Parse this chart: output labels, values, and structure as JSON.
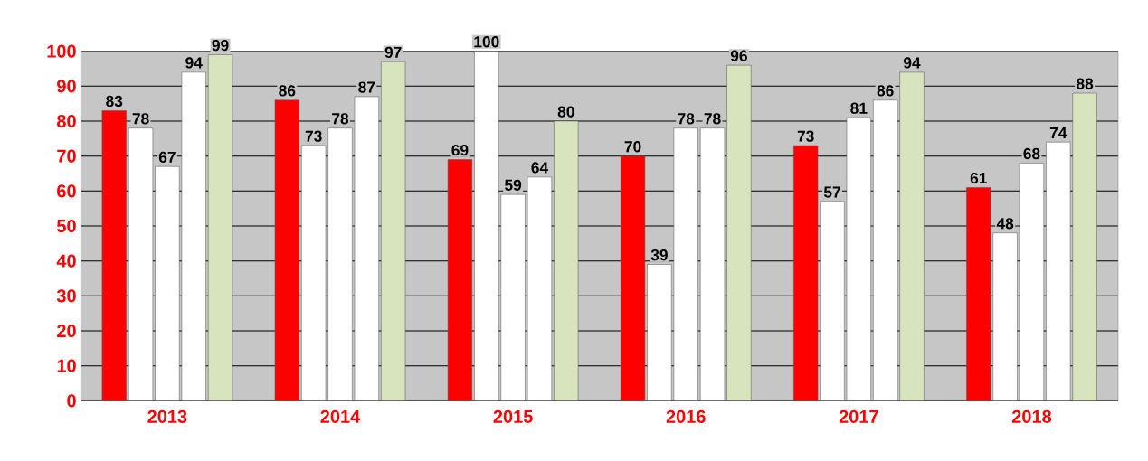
{
  "chart_data": {
    "type": "bar",
    "categories": [
      "2013",
      "2014",
      "2015",
      "2016",
      "2017",
      "2018"
    ],
    "series": [
      {
        "color": "#ff0000",
        "values": [
          83,
          86,
          69,
          70,
          73,
          61
        ]
      },
      {
        "color": "#ffffff",
        "values": [
          78,
          73,
          100,
          39,
          57,
          48
        ]
      },
      {
        "color": "#ffffff",
        "values": [
          67,
          78,
          59,
          78,
          81,
          68
        ]
      },
      {
        "color": "#ffffff",
        "values": [
          94,
          87,
          64,
          78,
          86,
          74
        ]
      },
      {
        "color": "#d7e4bd",
        "values": [
          99,
          97,
          80,
          96,
          94,
          88
        ]
      }
    ],
    "ylim": [
      0,
      100
    ],
    "yticks": [
      0,
      10,
      20,
      30,
      40,
      50,
      60,
      70,
      80,
      90,
      100
    ],
    "grid": "y",
    "data_labels": true
  }
}
